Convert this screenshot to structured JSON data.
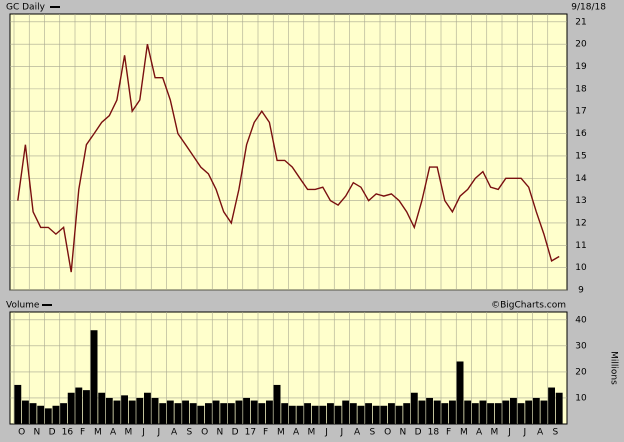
{
  "chart_data": [
    {
      "type": "line",
      "title": "GC Daily",
      "date": "9/18/18",
      "source": "©BigCharts.com",
      "series": [
        {
          "name": "GC Daily",
          "color": "#7a1010",
          "values": [
            13.0,
            15.5,
            12.5,
            11.8,
            11.8,
            11.5,
            11.8,
            9.8,
            13.5,
            15.5,
            16.0,
            16.5,
            16.8,
            17.5,
            19.5,
            17.0,
            17.5,
            20.0,
            18.5,
            18.5,
            17.5,
            16.0,
            15.5,
            15.0,
            14.5,
            14.2,
            13.5,
            12.5,
            12.0,
            13.5,
            15.5,
            16.5,
            17.0,
            16.5,
            14.8,
            14.8,
            14.5,
            14.0,
            13.5,
            13.5,
            13.6,
            13.0,
            12.8,
            13.2,
            13.8,
            13.6,
            13.0,
            13.3,
            13.2,
            13.3,
            13.0,
            12.5,
            11.8,
            13.0,
            14.5,
            14.5,
            13.0,
            12.5,
            13.2,
            13.5,
            14.0,
            14.3,
            13.6,
            13.5,
            14.0,
            14.0,
            14.0,
            13.6,
            12.5,
            11.5,
            10.3,
            10.5
          ]
        }
      ],
      "ylim": [
        9,
        21.35
      ],
      "yticks": [
        9,
        10,
        11,
        12,
        13,
        14,
        15,
        16,
        17,
        18,
        19,
        20,
        21
      ],
      "grid": true
    },
    {
      "type": "bar",
      "title": "Volume",
      "ylabel": "Millions",
      "categories": [
        "O",
        null,
        "N",
        null,
        "D",
        null,
        "16",
        null,
        "F",
        null,
        "M",
        null,
        "A",
        null,
        "M",
        null,
        "J",
        null,
        "J",
        null,
        "A",
        null,
        "S",
        null,
        "O",
        null,
        "N",
        null,
        "D",
        null,
        "17",
        null,
        "F",
        null,
        "M",
        null,
        "A",
        null,
        "M",
        null,
        "J",
        null,
        "J",
        null,
        "A",
        null,
        "S",
        null,
        "O",
        null,
        "N",
        null,
        "D",
        null,
        "18",
        null,
        "F",
        null,
        "M",
        null,
        "A",
        null,
        "M",
        null,
        "J",
        null,
        "J",
        null,
        "A",
        null,
        "S",
        null
      ],
      "series": [
        {
          "name": "Volume",
          "color": "#000000",
          "values": [
            15,
            9,
            8,
            7,
            6,
            7,
            8,
            12,
            14,
            13,
            36,
            12,
            10,
            9,
            11,
            9,
            10,
            12,
            10,
            8,
            9,
            8,
            9,
            8,
            7,
            8,
            9,
            8,
            8,
            9,
            10,
            9,
            8,
            9,
            15,
            8,
            7,
            7,
            8,
            7,
            7,
            8,
            7,
            9,
            8,
            7,
            8,
            7,
            7,
            8,
            7,
            8,
            12,
            9,
            10,
            9,
            8,
            9,
            24,
            9,
            8,
            9,
            8,
            8,
            9,
            10,
            8,
            9,
            10,
            9,
            14,
            12
          ]
        }
      ],
      "ylim": [
        0,
        43
      ],
      "yticks": [
        10,
        20,
        30,
        40
      ],
      "grid": true
    }
  ]
}
